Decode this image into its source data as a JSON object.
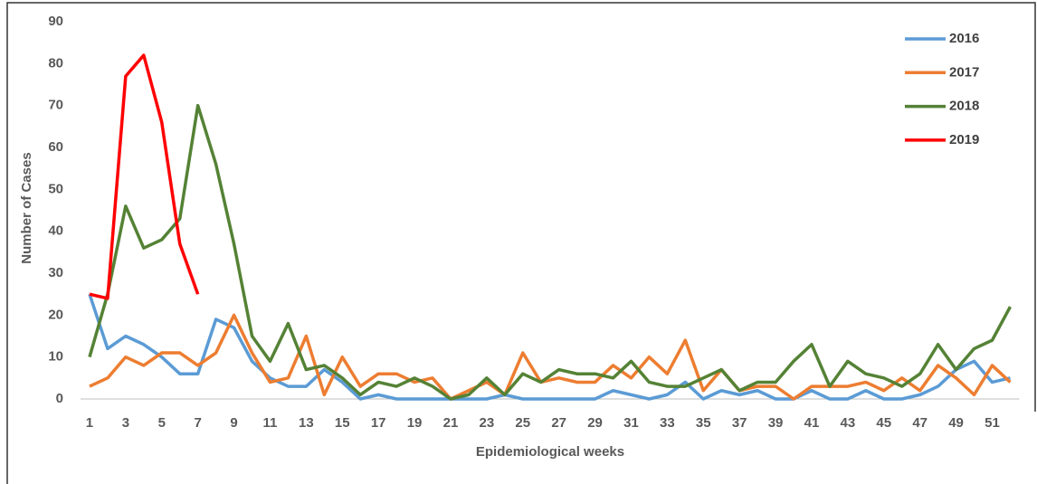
{
  "chart_data": {
    "type": "line",
    "x_label": "Epidemiological weeks",
    "y_label": "Number of Cases",
    "categories": [
      "1",
      null,
      "3",
      null,
      "5",
      null,
      "7",
      null,
      "9",
      null,
      "11",
      null,
      "13",
      null,
      "15",
      null,
      "17",
      null,
      "19",
      null,
      "21",
      null,
      "23",
      null,
      "25",
      null,
      "27",
      null,
      "29",
      null,
      "31",
      null,
      "33",
      null,
      "35",
      null,
      "37",
      null,
      "39",
      null,
      "41",
      null,
      "43",
      null,
      "45",
      null,
      "47",
      null,
      "49",
      null,
      "51",
      null
    ],
    "series": [
      {
        "name": "2016",
        "color": "#5b9bd5",
        "values": [
          25,
          12,
          15,
          13,
          10,
          6,
          6,
          19,
          17,
          9,
          5,
          3,
          3,
          7,
          4,
          0,
          1,
          0,
          0,
          0,
          0,
          0,
          0,
          1,
          0,
          0,
          0,
          0,
          0,
          2,
          1,
          0,
          1,
          4,
          0,
          2,
          1,
          2,
          0,
          0,
          2,
          0,
          0,
          2,
          0,
          0,
          1,
          3,
          7,
          9,
          4,
          5
        ]
      },
      {
        "name": "2017",
        "color": "#ed7d31",
        "values": [
          3,
          5,
          10,
          8,
          11,
          11,
          8,
          11,
          20,
          11,
          4,
          5,
          15,
          1,
          10,
          3,
          6,
          6,
          4,
          5,
          0,
          2,
          4,
          1,
          11,
          4,
          5,
          4,
          4,
          8,
          5,
          10,
          6,
          14,
          2,
          7,
          2,
          3,
          3,
          0,
          3,
          3,
          3,
          4,
          2,
          5,
          2,
          8,
          5,
          1,
          8,
          4
        ]
      },
      {
        "name": "2018",
        "color": "#548235",
        "values": [
          10,
          25,
          46,
          36,
          38,
          43,
          70,
          56,
          37,
          15,
          9,
          18,
          7,
          8,
          5,
          1,
          4,
          3,
          5,
          3,
          0,
          1,
          5,
          1,
          6,
          4,
          7,
          6,
          6,
          5,
          9,
          4,
          3,
          3,
          5,
          7,
          2,
          4,
          4,
          9,
          13,
          3,
          9,
          6,
          5,
          3,
          6,
          13,
          7,
          12,
          14,
          22
        ]
      },
      {
        "name": "2019",
        "color": "#ff0000",
        "values": [
          25,
          24,
          77,
          82,
          66,
          37,
          25,
          null,
          null,
          null,
          null,
          null,
          null,
          null,
          null,
          null,
          null,
          null,
          null,
          null,
          null,
          null,
          null,
          null,
          null,
          null,
          null,
          null,
          null,
          null,
          null,
          null,
          null,
          null,
          null,
          null,
          null,
          null,
          null,
          null,
          null,
          null,
          null,
          null,
          null,
          null,
          null,
          null,
          null,
          null,
          null,
          null
        ]
      }
    ],
    "ylim": [
      0,
      90
    ],
    "yticks": [
      0,
      10,
      20,
      30,
      40,
      50,
      60,
      70,
      80,
      90
    ],
    "grid": false,
    "legend": "top-right"
  }
}
